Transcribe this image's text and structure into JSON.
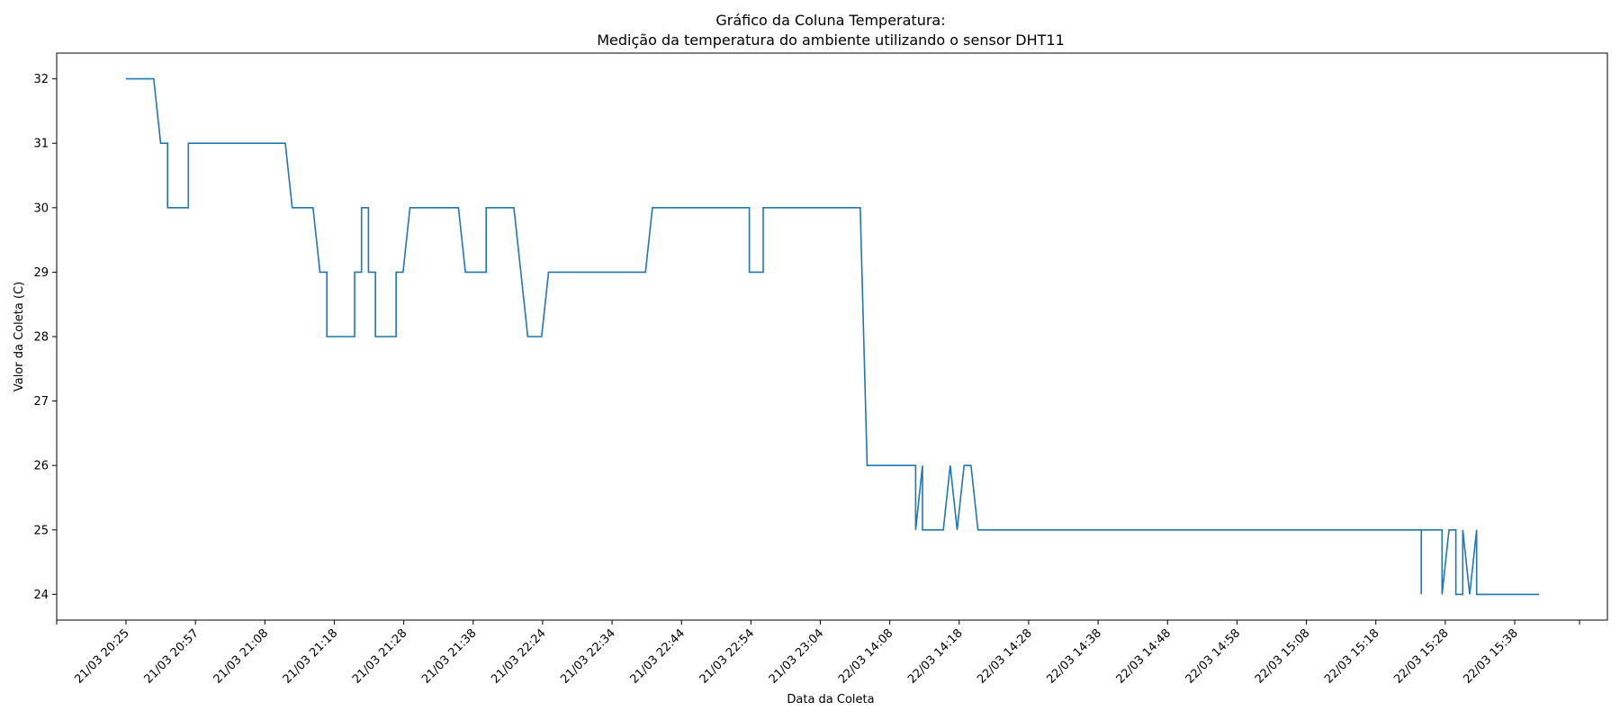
{
  "chart_data": {
    "type": "line",
    "title": "Gráfico da Coluna Temperatura:",
    "subtitle": "Medição da temperatura do ambiente utilizando o sensor DHT11",
    "xlabel": "Data da Coleta",
    "ylabel": "Valor da Coleta (C)",
    "ylim": [
      23.6,
      32.4
    ],
    "yticks": [
      24,
      25,
      26,
      27,
      28,
      29,
      30,
      31,
      32
    ],
    "x_tick_labels": [
      "21/03 20:25",
      "21/03 20:57",
      "21/03 21:08",
      "21/03 21:18",
      "21/03 21:28",
      "21/03 21:38",
      "21/03 22:24",
      "21/03 22:34",
      "21/03 22:44",
      "21/03 22:54",
      "21/03 23:04",
      "22/03 14:08",
      "22/03 14:18",
      "22/03 14:28",
      "22/03 14:38",
      "22/03 14:48",
      "22/03 14:58",
      "22/03 15:08",
      "22/03 15:18",
      "22/03 15:28",
      "22/03 15:38"
    ],
    "x_tick_label_rotation": 45,
    "x_axis_kind": "categorical sequential readings",
    "grid": false,
    "legend": "none",
    "series": [
      {
        "color": "#1f77b4",
        "points": [
          [
            0,
            32
          ],
          [
            4,
            32
          ],
          [
            5,
            31
          ],
          [
            6,
            31
          ],
          [
            6,
            30
          ],
          [
            9,
            30
          ],
          [
            9,
            31
          ],
          [
            23,
            31
          ],
          [
            24,
            30
          ],
          [
            27,
            30
          ],
          [
            28,
            29
          ],
          [
            29,
            29
          ],
          [
            29,
            28
          ],
          [
            33,
            28
          ],
          [
            33,
            29
          ],
          [
            34,
            29
          ],
          [
            34,
            30
          ],
          [
            35,
            30
          ],
          [
            35,
            29
          ],
          [
            36,
            29
          ],
          [
            36,
            28
          ],
          [
            39,
            28
          ],
          [
            39,
            29
          ],
          [
            40,
            29
          ],
          [
            41,
            30
          ],
          [
            48,
            30
          ],
          [
            49,
            29
          ],
          [
            52,
            29
          ],
          [
            52,
            30
          ],
          [
            56,
            30
          ],
          [
            58,
            28
          ],
          [
            60,
            28
          ],
          [
            61,
            29
          ],
          [
            75,
            29
          ],
          [
            76,
            30
          ],
          [
            90,
            30
          ],
          [
            90,
            29
          ],
          [
            92,
            29
          ],
          [
            92,
            30
          ],
          [
            106,
            30
          ],
          [
            107,
            26
          ],
          [
            114,
            26
          ],
          [
            114,
            25
          ],
          [
            115,
            26
          ],
          [
            115,
            25
          ],
          [
            118,
            25
          ],
          [
            119,
            26
          ],
          [
            120,
            25
          ],
          [
            121,
            26
          ],
          [
            122,
            26
          ],
          [
            123,
            25
          ],
          [
            187,
            25
          ],
          [
            187,
            24
          ],
          [
            187,
            25
          ],
          [
            190,
            25
          ],
          [
            190,
            24
          ],
          [
            191,
            25
          ],
          [
            192,
            25
          ],
          [
            192,
            24
          ],
          [
            193,
            24
          ],
          [
            193,
            25
          ],
          [
            194,
            24
          ],
          [
            195,
            25
          ],
          [
            195,
            24
          ],
          [
            204,
            24
          ]
        ]
      }
    ]
  }
}
